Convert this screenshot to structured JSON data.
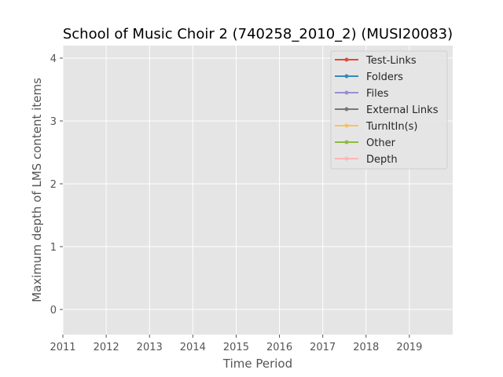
{
  "chart_data": {
    "type": "line",
    "title": "School of Music Choir 2 (740258_2010_2) (MUSI20083)",
    "xlabel": "Time Period",
    "ylabel": "Maximum depth of LMS content items",
    "xlim": [
      2011,
      2020
    ],
    "ylim": [
      -0.4,
      4.2
    ],
    "x_ticks": [
      "2011",
      "2012",
      "2013",
      "2014",
      "2015",
      "2016",
      "2017",
      "2018",
      "2019"
    ],
    "y_ticks": [
      "0",
      "1",
      "2",
      "3",
      "4"
    ],
    "grid": true,
    "legend_position": "upper right",
    "series": [
      {
        "name": "Test-Links",
        "color": "#E24A33",
        "x": [],
        "y": []
      },
      {
        "name": "Folders",
        "color": "#348ABD",
        "x": [],
        "y": []
      },
      {
        "name": "Files",
        "color": "#988ED5",
        "x": [],
        "y": []
      },
      {
        "name": "External Links",
        "color": "#777777",
        "x": [],
        "y": []
      },
      {
        "name": "TurnItIn(s)",
        "color": "#FBC15E",
        "x": [],
        "y": []
      },
      {
        "name": "Other",
        "color": "#8EBA42",
        "x": [],
        "y": []
      },
      {
        "name": "Depth",
        "color": "#FFB5B8",
        "x": [],
        "y": []
      }
    ]
  }
}
